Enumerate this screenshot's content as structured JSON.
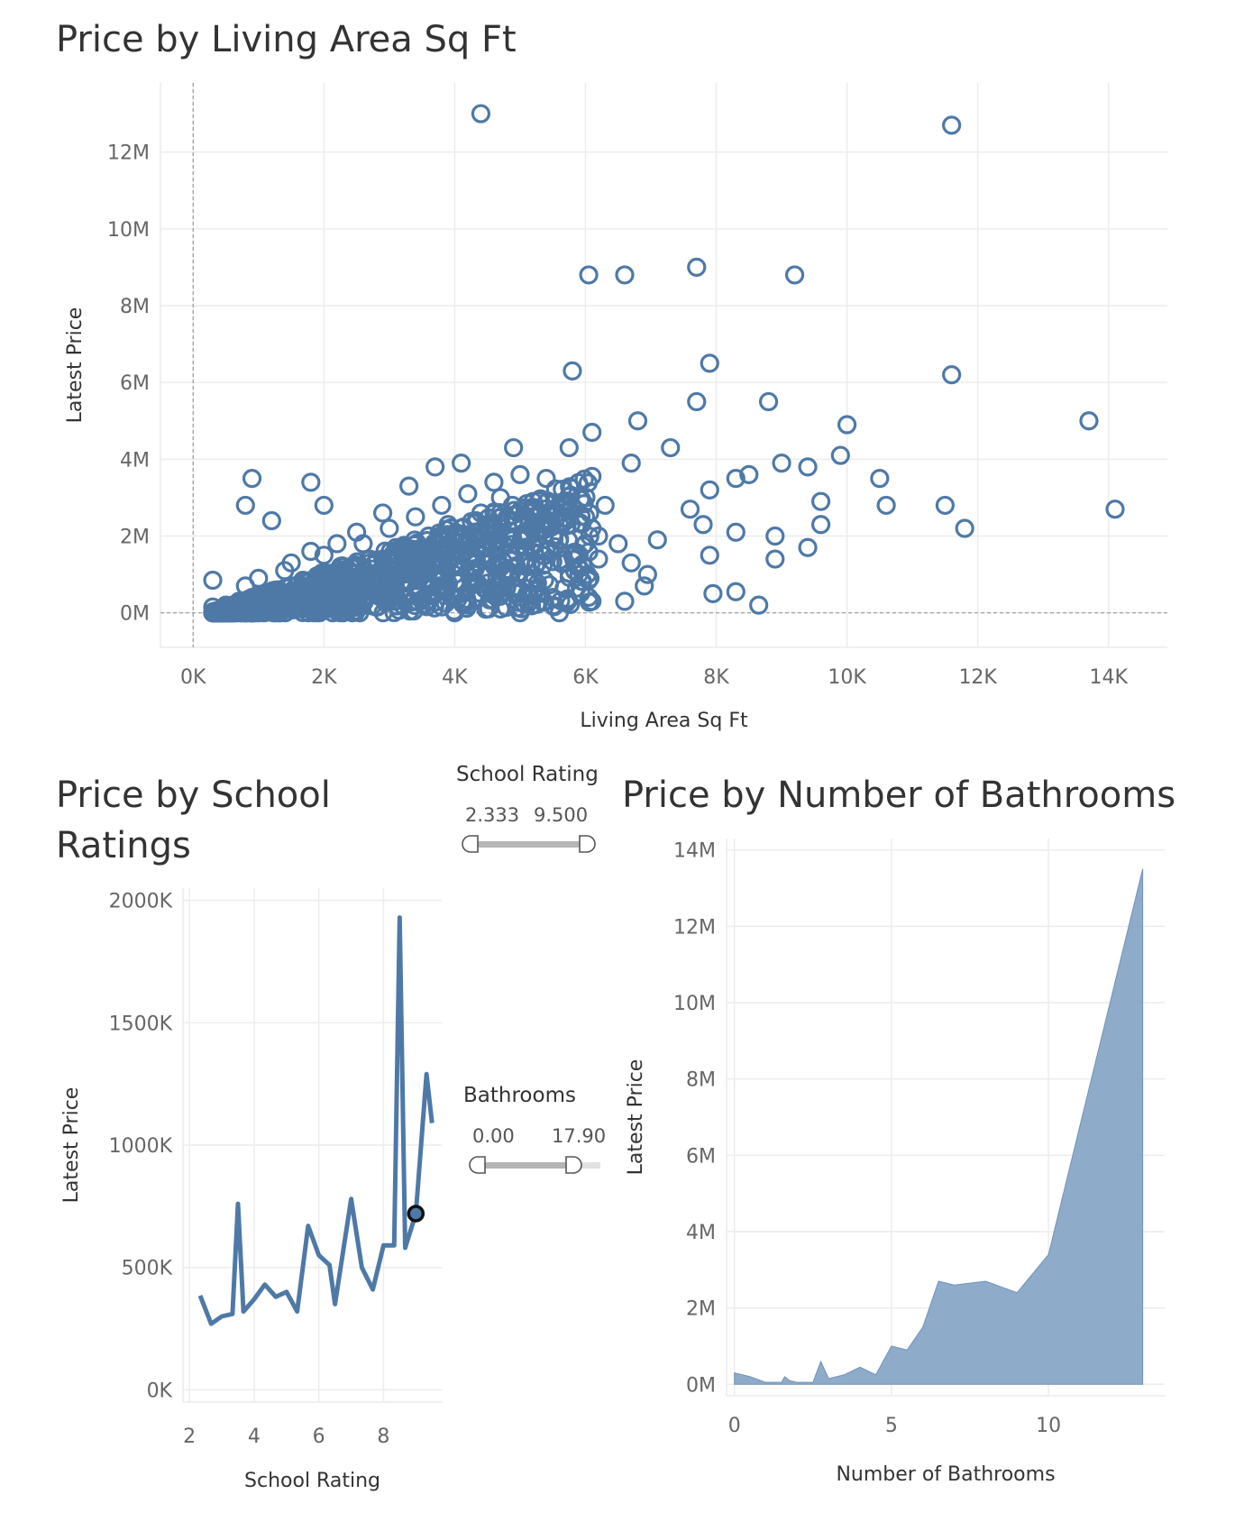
{
  "chart_data": [
    {
      "type": "scatter",
      "title": "Price by Living Area Sq Ft",
      "xlabel": "Living Area Sq Ft",
      "ylabel": "Latest Price",
      "xlim": [
        -500,
        14900
      ],
      "ylim": [
        -900000,
        13800000
      ],
      "x_ticks": [
        0,
        2000,
        4000,
        6000,
        8000,
        10000,
        12000,
        14000
      ],
      "x_tick_labels": [
        "0K",
        "2K",
        "4K",
        "6K",
        "8K",
        "10K",
        "12K",
        "14K"
      ],
      "y_ticks": [
        0,
        2000000,
        4000000,
        6000000,
        8000000,
        10000000,
        12000000
      ],
      "y_tick_labels": [
        "0M",
        "2M",
        "4M",
        "6M",
        "8M",
        "10M",
        "12M"
      ],
      "grid": true,
      "series": [
        {
          "color": "#4e79a7",
          "points": [
            [
              4400,
              13000000
            ],
            [
              11600,
              12700000
            ],
            [
              6050,
              8800000
            ],
            [
              6600,
              8800000
            ],
            [
              7700,
              9000000
            ],
            [
              9200,
              8800000
            ],
            [
              5800,
              6300000
            ],
            [
              7900,
              6500000
            ],
            [
              11600,
              6200000
            ],
            [
              7700,
              5500000
            ],
            [
              8800,
              5500000
            ],
            [
              13700,
              5000000
            ],
            [
              6100,
              4700000
            ],
            [
              6800,
              5000000
            ],
            [
              10000,
              4900000
            ],
            [
              9900,
              4100000
            ],
            [
              4900,
              4300000
            ],
            [
              5750,
              4300000
            ],
            [
              7300,
              4300000
            ],
            [
              9000,
              3900000
            ],
            [
              9400,
              3800000
            ],
            [
              8500,
              3600000
            ],
            [
              8300,
              3500000
            ],
            [
              7900,
              3200000
            ],
            [
              10500,
              3500000
            ],
            [
              9600,
              2900000
            ],
            [
              10600,
              2800000
            ],
            [
              11500,
              2800000
            ],
            [
              11800,
              2200000
            ],
            [
              14100,
              2700000
            ],
            [
              8300,
              2100000
            ],
            [
              8900,
              2000000
            ],
            [
              8900,
              1400000
            ],
            [
              9400,
              1700000
            ],
            [
              9600,
              2300000
            ],
            [
              7900,
              1500000
            ],
            [
              7950,
              500000
            ],
            [
              8300,
              550000
            ],
            [
              8650,
              200000
            ],
            [
              900,
              3500000
            ],
            [
              800,
              2800000
            ],
            [
              1800,
              3400000
            ],
            [
              2000,
              2800000
            ],
            [
              1200,
              2400000
            ],
            [
              6500,
              1800000
            ],
            [
              6700,
              1300000
            ],
            [
              7100,
              1900000
            ],
            [
              7600,
              2700000
            ],
            [
              7800,
              2300000
            ],
            [
              6950,
              1000000
            ],
            [
              6900,
              700000
            ],
            [
              6600,
              300000
            ],
            [
              6100,
              300000
            ],
            [
              5600,
              0
            ],
            [
              5000,
              0
            ],
            [
              4000,
              0
            ],
            [
              300,
              850000
            ],
            [
              300,
              150000
            ],
            [
              6300,
              2800000
            ],
            [
              6700,
              3900000
            ]
          ],
          "note_dense": [
            [
              500,
              200000
            ],
            [
              700,
              300000
            ],
            [
              900,
              400000
            ],
            [
              1100,
              500000
            ],
            [
              1300,
              600000
            ],
            [
              1500,
              700000
            ],
            [
              1700,
              800000
            ],
            [
              1900,
              900000
            ],
            [
              2100,
              1000000
            ],
            [
              2300,
              1100000
            ],
            [
              2500,
              1200000
            ],
            [
              2700,
              1300000
            ],
            [
              2900,
              1400000
            ],
            [
              3100,
              1500000
            ],
            [
              3300,
              1600000
            ],
            [
              3500,
              1700000
            ],
            [
              3700,
              1800000
            ],
            [
              3900,
              1900000
            ],
            [
              4100,
              2000000
            ],
            [
              4300,
              2100000
            ],
            [
              4500,
              2200000
            ],
            [
              4700,
              2300000
            ],
            [
              4900,
              2400000
            ],
            [
              5100,
              2500000
            ],
            [
              5300,
              2600000
            ],
            [
              5500,
              2700000
            ],
            [
              5700,
              2800000
            ],
            [
              6000,
              2500000
            ],
            [
              6200,
              2000000
            ],
            [
              5400,
              1600000
            ],
            [
              5800,
              1500000
            ],
            [
              5200,
              1000000
            ],
            [
              4800,
              700000
            ],
            [
              4400,
              500000
            ],
            [
              4000,
              400000
            ],
            [
              3600,
              300000
            ],
            [
              3200,
              200000
            ],
            [
              2800,
              150000
            ],
            [
              2400,
              100000
            ],
            [
              2000,
              100000
            ],
            [
              1600,
              100000
            ],
            [
              1200,
              100000
            ],
            [
              600,
              100000
            ],
            [
              1000,
              900000
            ],
            [
              1500,
              1300000
            ],
            [
              2000,
              1500000
            ],
            [
              2600,
              1800000
            ],
            [
              3000,
              2200000
            ],
            [
              3400,
              2500000
            ],
            [
              3800,
              2800000
            ],
            [
              4200,
              3100000
            ],
            [
              4600,
              3400000
            ],
            [
              5000,
              3600000
            ],
            [
              5400,
              3500000
            ],
            [
              3700,
              3800000
            ],
            [
              4100,
              3900000
            ],
            [
              3300,
              3300000
            ],
            [
              2900,
              2600000
            ],
            [
              2500,
              2100000
            ],
            [
              2200,
              1800000
            ],
            [
              1800,
              1600000
            ],
            [
              1400,
              1100000
            ],
            [
              800,
              700000
            ],
            [
              3000,
              800000
            ],
            [
              3500,
              1000000
            ],
            [
              4000,
              1200000
            ],
            [
              4500,
              1400000
            ],
            [
              5000,
              1700000
            ],
            [
              5500,
              2000000
            ],
            [
              6000,
              1800000
            ],
            [
              6200,
              1400000
            ],
            [
              5900,
              1000000
            ],
            [
              5500,
              400000
            ],
            [
              4700,
              100000
            ],
            [
              4200,
              200000
            ],
            [
              3800,
              1400000
            ],
            [
              3300,
              1100000
            ],
            [
              2800,
              900000
            ],
            [
              2300,
              600000
            ],
            [
              1900,
              400000
            ],
            [
              1400,
              300000
            ],
            [
              2600,
              400000
            ],
            [
              3400,
              600000
            ],
            [
              4300,
              800000
            ],
            [
              5100,
              1200000
            ],
            [
              5700,
              1300000
            ],
            [
              4800,
              2000000
            ],
            [
              4400,
              2600000
            ],
            [
              3900,
              2300000
            ],
            [
              3600,
              2000000
            ],
            [
              3100,
              1700000
            ],
            [
              2700,
              1400000
            ],
            [
              2300,
              1200000
            ],
            [
              1700,
              500000
            ],
            [
              1100,
              200000
            ],
            [
              5200,
              2900000
            ],
            [
              4700,
              3000000
            ],
            [
              5600,
              2300000
            ],
            [
              6100,
              2200000
            ],
            [
              5300,
              500000
            ],
            [
              4600,
              600000
            ],
            [
              3000,
              400000
            ]
          ]
        }
      ]
    },
    {
      "type": "line",
      "title": "Price by School Ratings",
      "title_lines": [
        "Price by School",
        "Ratings"
      ],
      "xlabel": "School Rating",
      "ylabel": "Latest Price",
      "xlim": [
        1.8,
        9.8
      ],
      "ylim": [
        -50000,
        2050000
      ],
      "x_ticks": [
        2,
        4,
        6,
        8
      ],
      "x_tick_labels": [
        "2",
        "4",
        "6",
        "8"
      ],
      "y_ticks": [
        0,
        500000,
        1000000,
        1500000,
        2000000
      ],
      "y_tick_labels": [
        "0K",
        "500K",
        "1000K",
        "1500K",
        "2000K"
      ],
      "grid": true,
      "series": [
        {
          "color": "#4e79a7",
          "x": [
            2.33,
            2.67,
            3.0,
            3.33,
            3.5,
            3.67,
            4.0,
            4.33,
            4.67,
            5.0,
            5.33,
            5.67,
            6.0,
            6.33,
            6.5,
            7.0,
            7.33,
            7.67,
            8.0,
            8.33,
            8.5,
            8.67,
            9.0,
            9.33,
            9.5
          ],
          "y": [
            385000,
            270000,
            300000,
            310000,
            760000,
            320000,
            370000,
            430000,
            380000,
            400000,
            320000,
            670000,
            550000,
            510000,
            350000,
            780000,
            500000,
            410000,
            590000,
            590000,
            1930000,
            580000,
            720000,
            1290000,
            1090000
          ]
        }
      ],
      "highlight": {
        "x": 9.0,
        "y": 720000
      }
    },
    {
      "type": "area",
      "title": "Price by Number of  Bathrooms",
      "xlabel": "Number of Bathrooms",
      "ylabel": "Latest Price",
      "xlim": [
        -0.25,
        13.7
      ],
      "ylim": [
        -300000,
        14300000
      ],
      "x_ticks": [
        0,
        5,
        10
      ],
      "x_tick_labels": [
        "0",
        "5",
        "10"
      ],
      "y_ticks": [
        0,
        2000000,
        4000000,
        6000000,
        8000000,
        10000000,
        12000000,
        14000000
      ],
      "y_tick_labels": [
        "0M",
        "2M",
        "4M",
        "6M",
        "8M",
        "10M",
        "12M",
        "14M"
      ],
      "grid": true,
      "series": [
        {
          "color": "#7f9fc3",
          "x": [
            0,
            0.5,
            1,
            1.5,
            1.6,
            1.75,
            2,
            2.5,
            2.75,
            3,
            3.5,
            4,
            4.5,
            5,
            5.5,
            6,
            6.5,
            7,
            8,
            9,
            10,
            13
          ],
          "y": [
            300000,
            200000,
            50000,
            50000,
            200000,
            100000,
            50000,
            50000,
            600000,
            150000,
            250000,
            450000,
            250000,
            1000000,
            900000,
            1500000,
            2700000,
            2600000,
            2700000,
            2400000,
            3400000,
            13500000
          ]
        }
      ]
    }
  ],
  "filters": {
    "school_rating": {
      "title": "School Rating",
      "min": "2.333",
      "max": "9.500",
      "fraction_start": 0.0,
      "fraction_end": 1.0
    },
    "bathrooms": {
      "title": "Bathrooms",
      "min": "0.00",
      "max": "17.90",
      "fraction_start": 0.0,
      "fraction_end": 0.82
    }
  }
}
